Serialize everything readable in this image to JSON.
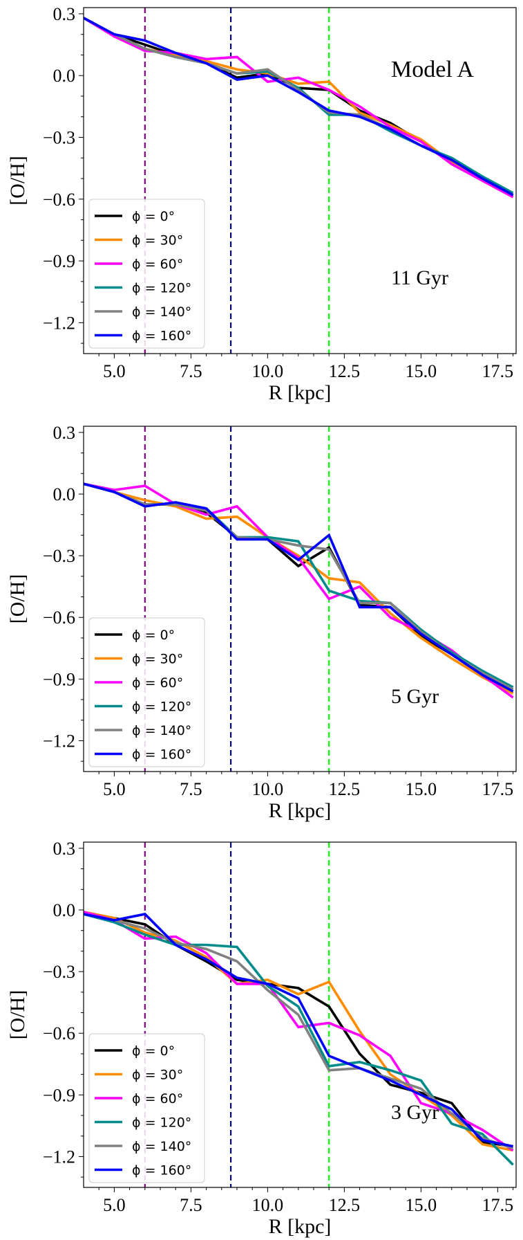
{
  "figure": {
    "model_label": "Model A"
  },
  "chart_data": [
    {
      "type": "line",
      "time_label": "11 Gyr",
      "xlabel": "R [kpc]",
      "ylabel": "[O/H]",
      "xlim": [
        4,
        18.1
      ],
      "ylim": [
        -1.35,
        0.33
      ],
      "xticks": [
        "5.0",
        "7.5",
        "10.0",
        "12.5",
        "15.0",
        "17.5"
      ],
      "yticks": [
        "0.3",
        "0.0",
        "−0.3",
        "−0.6",
        "−0.9",
        "−1.2"
      ],
      "vlines": [
        {
          "x": 6.0,
          "color": "#800080"
        },
        {
          "x": 8.8,
          "color": "#00008b"
        },
        {
          "x": 12.0,
          "color": "#00ff00"
        }
      ],
      "x": [
        4,
        5,
        6,
        7,
        8,
        9,
        10,
        11,
        12,
        13,
        14,
        15,
        16,
        17,
        18
      ],
      "series": [
        {
          "name": "ϕ = 0°",
          "color": "#000000",
          "values": [
            0.28,
            0.2,
            0.15,
            0.1,
            0.06,
            -0.01,
            0.01,
            -0.06,
            -0.07,
            -0.17,
            -0.23,
            -0.32,
            -0.42,
            -0.51,
            -0.58
          ]
        },
        {
          "name": "ϕ = 30°",
          "color": "#ff8c00",
          "values": [
            0.28,
            0.2,
            0.13,
            0.1,
            0.07,
            0.03,
            0.01,
            -0.04,
            -0.03,
            -0.18,
            -0.24,
            -0.31,
            -0.42,
            -0.51,
            -0.59
          ]
        },
        {
          "name": "ϕ = 60°",
          "color": "#ff00ff",
          "values": [
            0.28,
            0.19,
            0.12,
            0.11,
            0.08,
            0.09,
            -0.03,
            -0.01,
            -0.07,
            -0.15,
            -0.25,
            -0.32,
            -0.43,
            -0.51,
            -0.59
          ]
        },
        {
          "name": "ϕ = 120°",
          "color": "#008b8b",
          "values": [
            0.28,
            0.2,
            0.13,
            0.09,
            0.06,
            0.01,
            0.02,
            -0.06,
            -0.19,
            -0.19,
            -0.27,
            -0.34,
            -0.4,
            -0.49,
            -0.57
          ]
        },
        {
          "name": "ϕ = 140°",
          "color": "#808080",
          "values": [
            0.28,
            0.2,
            0.13,
            0.09,
            0.06,
            0.01,
            0.03,
            -0.07,
            -0.18,
            -0.19,
            -0.26,
            -0.34,
            -0.41,
            -0.5,
            -0.58
          ]
        },
        {
          "name": "ϕ = 160°",
          "color": "#0000ff",
          "values": [
            0.28,
            0.2,
            0.17,
            0.11,
            0.06,
            -0.02,
            0.0,
            -0.08,
            -0.17,
            -0.2,
            -0.26,
            -0.34,
            -0.41,
            -0.5,
            -0.58
          ]
        }
      ]
    },
    {
      "type": "line",
      "time_label": "5 Gyr",
      "xlabel": "R [kpc]",
      "ylabel": "[O/H]",
      "xlim": [
        4,
        18.1
      ],
      "ylim": [
        -1.35,
        0.33
      ],
      "xticks": [
        "5.0",
        "7.5",
        "10.0",
        "12.5",
        "15.0",
        "17.5"
      ],
      "yticks": [
        "0.3",
        "0.0",
        "−0.3",
        "−0.6",
        "−0.9",
        "−1.2"
      ],
      "vlines": [
        {
          "x": 6.0,
          "color": "#800080"
        },
        {
          "x": 8.8,
          "color": "#00008b"
        },
        {
          "x": 12.0,
          "color": "#00ff00"
        }
      ],
      "x": [
        4,
        5,
        6,
        7,
        8,
        9,
        10,
        11,
        12,
        13,
        14,
        15,
        16,
        17,
        18
      ],
      "series": [
        {
          "name": "ϕ = 0°",
          "color": "#000000",
          "values": [
            0.05,
            0.01,
            -0.05,
            -0.05,
            -0.09,
            -0.21,
            -0.22,
            -0.35,
            -0.26,
            -0.54,
            -0.55,
            -0.69,
            -0.78,
            -0.88,
            -0.96
          ]
        },
        {
          "name": "ϕ = 30°",
          "color": "#ff8c00",
          "values": [
            0.05,
            0.01,
            -0.03,
            -0.06,
            -0.12,
            -0.11,
            -0.21,
            -0.3,
            -0.41,
            -0.43,
            -0.58,
            -0.7,
            -0.8,
            -0.89,
            -0.97
          ]
        },
        {
          "name": "ϕ = 60°",
          "color": "#ff00ff",
          "values": [
            0.05,
            0.02,
            0.04,
            -0.05,
            -0.1,
            -0.06,
            -0.21,
            -0.31,
            -0.51,
            -0.45,
            -0.6,
            -0.67,
            -0.76,
            -0.88,
            -0.99
          ]
        },
        {
          "name": "ϕ = 120°",
          "color": "#008b8b",
          "values": [
            0.05,
            0.01,
            -0.05,
            -0.05,
            -0.07,
            -0.21,
            -0.21,
            -0.23,
            -0.47,
            -0.52,
            -0.53,
            -0.66,
            -0.77,
            -0.86,
            -0.94
          ]
        },
        {
          "name": "ϕ = 140°",
          "color": "#808080",
          "values": [
            0.05,
            0.01,
            -0.05,
            -0.05,
            -0.08,
            -0.21,
            -0.22,
            -0.25,
            -0.27,
            -0.53,
            -0.53,
            -0.67,
            -0.78,
            -0.87,
            -0.95
          ]
        },
        {
          "name": "ϕ = 160°",
          "color": "#0000ff",
          "values": [
            0.05,
            0.01,
            -0.06,
            -0.04,
            -0.07,
            -0.22,
            -0.22,
            -0.32,
            -0.2,
            -0.55,
            -0.55,
            -0.68,
            -0.78,
            -0.88,
            -0.96
          ]
        }
      ]
    },
    {
      "type": "line",
      "time_label": "3 Gyr",
      "xlabel": "R [kpc]",
      "ylabel": "[O/H]",
      "xlim": [
        4,
        18.1
      ],
      "ylim": [
        -1.35,
        0.33
      ],
      "xticks": [
        "5.0",
        "7.5",
        "10.0",
        "12.5",
        "15.0",
        "17.5"
      ],
      "yticks": [
        "0.3",
        "0.0",
        "−0.3",
        "−0.6",
        "−0.9",
        "−1.2"
      ],
      "vlines": [
        {
          "x": 6.0,
          "color": "#800080"
        },
        {
          "x": 8.8,
          "color": "#00008b"
        },
        {
          "x": 12.0,
          "color": "#00ff00"
        }
      ],
      "x": [
        4,
        5,
        6,
        7,
        8,
        9,
        10,
        11,
        12,
        13,
        14,
        15,
        16,
        17,
        18
      ],
      "series": [
        {
          "name": "ϕ = 0°",
          "color": "#000000",
          "values": [
            -0.01,
            -0.04,
            -0.07,
            -0.17,
            -0.25,
            -0.34,
            -0.36,
            -0.38,
            -0.47,
            -0.7,
            -0.85,
            -0.89,
            -0.94,
            -1.13,
            -1.15
          ]
        },
        {
          "name": "ϕ = 30°",
          "color": "#ff8c00",
          "values": [
            -0.01,
            -0.04,
            -0.11,
            -0.15,
            -0.23,
            -0.36,
            -0.34,
            -0.41,
            -0.35,
            -0.59,
            -0.8,
            -0.9,
            -1.0,
            -1.14,
            -1.17
          ]
        },
        {
          "name": "ϕ = 60°",
          "color": "#ff00ff",
          "values": [
            -0.01,
            -0.05,
            -0.14,
            -0.13,
            -0.21,
            -0.36,
            -0.36,
            -0.57,
            -0.55,
            -0.61,
            -0.71,
            -0.94,
            -0.99,
            -1.07,
            -1.17
          ]
        },
        {
          "name": "ϕ = 120°",
          "color": "#008b8b",
          "values": [
            -0.02,
            -0.06,
            -0.12,
            -0.17,
            -0.17,
            -0.18,
            -0.37,
            -0.47,
            -0.76,
            -0.74,
            -0.78,
            -0.83,
            -1.04,
            -1.09,
            -1.24
          ]
        },
        {
          "name": "ϕ = 140°",
          "color": "#808080",
          "values": [
            -0.02,
            -0.05,
            -0.09,
            -0.16,
            -0.19,
            -0.25,
            -0.39,
            -0.51,
            -0.78,
            -0.77,
            -0.82,
            -0.87,
            -0.99,
            -1.11,
            -1.16
          ]
        },
        {
          "name": "ϕ = 160°",
          "color": "#0000ff",
          "values": [
            -0.02,
            -0.05,
            -0.02,
            -0.17,
            -0.24,
            -0.33,
            -0.36,
            -0.43,
            -0.71,
            -0.77,
            -0.83,
            -0.9,
            -0.97,
            -1.12,
            -1.15
          ]
        }
      ]
    }
  ]
}
